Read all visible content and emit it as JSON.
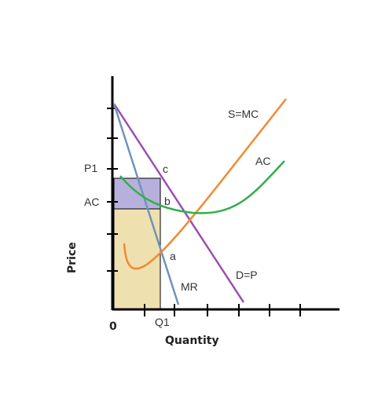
{
  "labels": {
    "y_axis": "Price",
    "x_axis": "Quantity",
    "origin": "0",
    "q1": "Q1",
    "p1": "P1",
    "ac_level": "AC",
    "point_a": "a",
    "point_b": "b",
    "point_c": "c",
    "supply_mc": "S=MC",
    "average_cost": "AC",
    "demand": "D=P",
    "marginal_revenue": "MR"
  },
  "colors": {
    "axis": "#000000",
    "demand": "#9b4fb0",
    "marginal_revenue": "#6f94b8",
    "supply_mc": "#f28a30",
    "average_cost": "#2fb04a",
    "profit_area": "#b8b0dc",
    "cost_area": "#efe0b0",
    "outline": "#000000"
  },
  "icons": []
}
